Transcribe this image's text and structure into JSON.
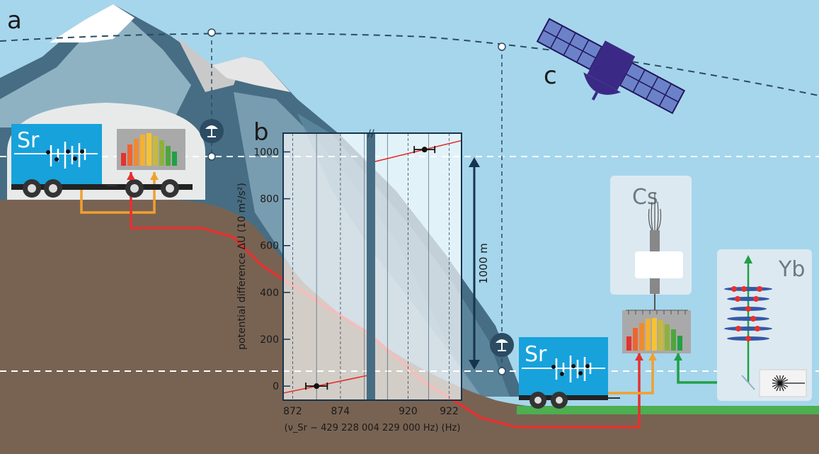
{
  "panel_labels": {
    "a": "a",
    "b": "b",
    "c": "c"
  },
  "sr_label": "Sr",
  "cs_label": "Cs",
  "yb_label": "Yb",
  "height_label": "1000 m",
  "colors": {
    "sky": "#a6d6ec",
    "ground": "#786353",
    "grass": "#4caf50",
    "sr_blue": "#17a2dc",
    "link_red": "#e5312e",
    "link_orange": "#f0a030",
    "link_green": "#21a046",
    "satellite": "#3b2a85",
    "mountain_light": "#8fb2c3",
    "mountain_dark": "#466d83"
  },
  "chart_data": {
    "type": "scatter",
    "ylabel": "potential difference ΔU (10 m²/s²)",
    "xlabel": "(ν_Sr − 429 228 004 229 000 Hz) (Hz)",
    "ylim": [
      -60,
      1080
    ],
    "yticks": [
      0,
      200,
      400,
      600,
      800,
      1000
    ],
    "x_segments": [
      {
        "range": [
          871.6,
          875.1
        ],
        "ticks": [
          872,
          874
        ]
      },
      {
        "range": [
          918.4,
          922.6
        ],
        "ticks": [
          920,
          922
        ]
      }
    ],
    "axis_break": true,
    "points": [
      {
        "x": 873.0,
        "y": 0,
        "xerr": 0.45
      },
      {
        "x": 920.8,
        "y": 1010,
        "xerr": 0.5
      }
    ],
    "fit_line": {
      "slope_per_hz": 21.3
    }
  }
}
